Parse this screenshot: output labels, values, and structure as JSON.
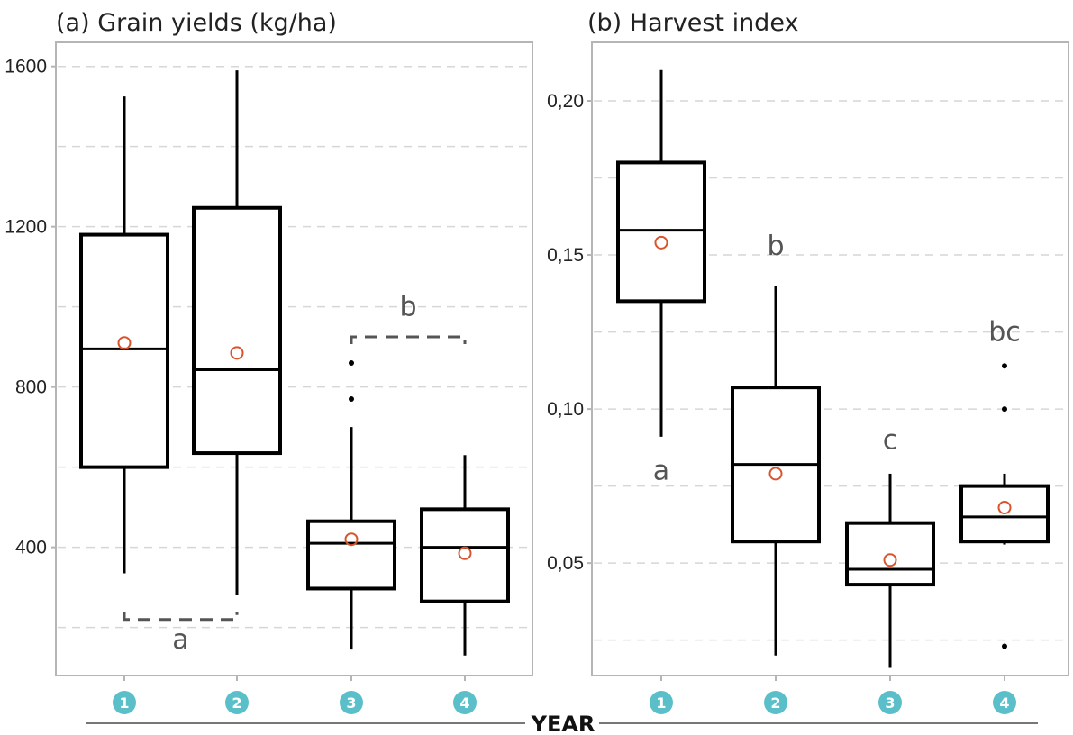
{
  "xaxis": {
    "label": "YEAR"
  },
  "colors": {
    "box": "#000000",
    "mean_marker": "#d9542c",
    "badge": "#5bbfc9",
    "grid": "#d6d6d6",
    "frame": "#b5b5b5",
    "bracket": "#555555"
  },
  "chart_data": [
    {
      "type": "box",
      "title": "(a) Grain yields (kg/ha)",
      "categories": [
        "1",
        "2",
        "3",
        "4"
      ],
      "ylim": [
        80,
        1660
      ],
      "yticks": [
        400,
        800,
        1200,
        1600
      ],
      "ytick_labels": [
        "400",
        "800",
        "1200",
        "1600"
      ],
      "grid": "dashed",
      "boxes": [
        {
          "whisker_low": 335,
          "q1": 600,
          "median": 895,
          "q3": 1180,
          "whisker_high": 1525,
          "mean": 910,
          "outliers": []
        },
        {
          "whisker_low": 280,
          "q1": 635,
          "median": 843,
          "q3": 1247,
          "whisker_high": 1590,
          "mean": 885,
          "outliers": []
        },
        {
          "whisker_low": 145,
          "q1": 297,
          "median": 410,
          "q3": 465,
          "whisker_high": 700,
          "mean": 420,
          "outliers": [
            770,
            860
          ]
        },
        {
          "whisker_low": 130,
          "q1": 265,
          "median": 400,
          "q3": 495,
          "whisker_high": 630,
          "mean": 385,
          "outliers": []
        }
      ],
      "annotations": [
        {
          "text": "a",
          "bracket": "bottom",
          "from": 0,
          "to": 1,
          "y": 220,
          "label_y": 170
        },
        {
          "text": "b",
          "bracket": "top",
          "from": 2,
          "to": 3,
          "y": 925,
          "label_y": 1000
        }
      ]
    },
    {
      "type": "box",
      "title": "(b) Harvest index",
      "categories": [
        "1",
        "2",
        "3",
        "4"
      ],
      "ylim": [
        0.0135,
        0.219
      ],
      "yticks": [
        0.05,
        0.1,
        0.15,
        0.2
      ],
      "ytick_labels": [
        "0,05",
        "0,10",
        "0,15",
        "0,20"
      ],
      "grid": "dashed",
      "boxes": [
        {
          "whisker_low": 0.091,
          "q1": 0.135,
          "median": 0.158,
          "q3": 0.18,
          "whisker_high": 0.21,
          "mean": 0.154,
          "outliers": []
        },
        {
          "whisker_low": 0.02,
          "q1": 0.057,
          "median": 0.082,
          "q3": 0.107,
          "whisker_high": 0.14,
          "mean": 0.079,
          "outliers": []
        },
        {
          "whisker_low": 0.016,
          "q1": 0.043,
          "median": 0.048,
          "q3": 0.063,
          "whisker_high": 0.079,
          "mean": 0.051,
          "outliers": []
        },
        {
          "whisker_low": 0.056,
          "q1": 0.057,
          "median": 0.065,
          "q3": 0.075,
          "whisker_high": 0.079,
          "mean": 0.068,
          "outliers": [
            0.023,
            0.1,
            0.114
          ]
        }
      ],
      "annotations": [
        {
          "text": "a",
          "x": 0,
          "y": 0.08
        },
        {
          "text": "b",
          "x": 1,
          "y": 0.153
        },
        {
          "text": "c",
          "x": 2,
          "y": 0.09
        },
        {
          "text": "bc",
          "x": 3,
          "y": 0.125
        }
      ]
    }
  ]
}
